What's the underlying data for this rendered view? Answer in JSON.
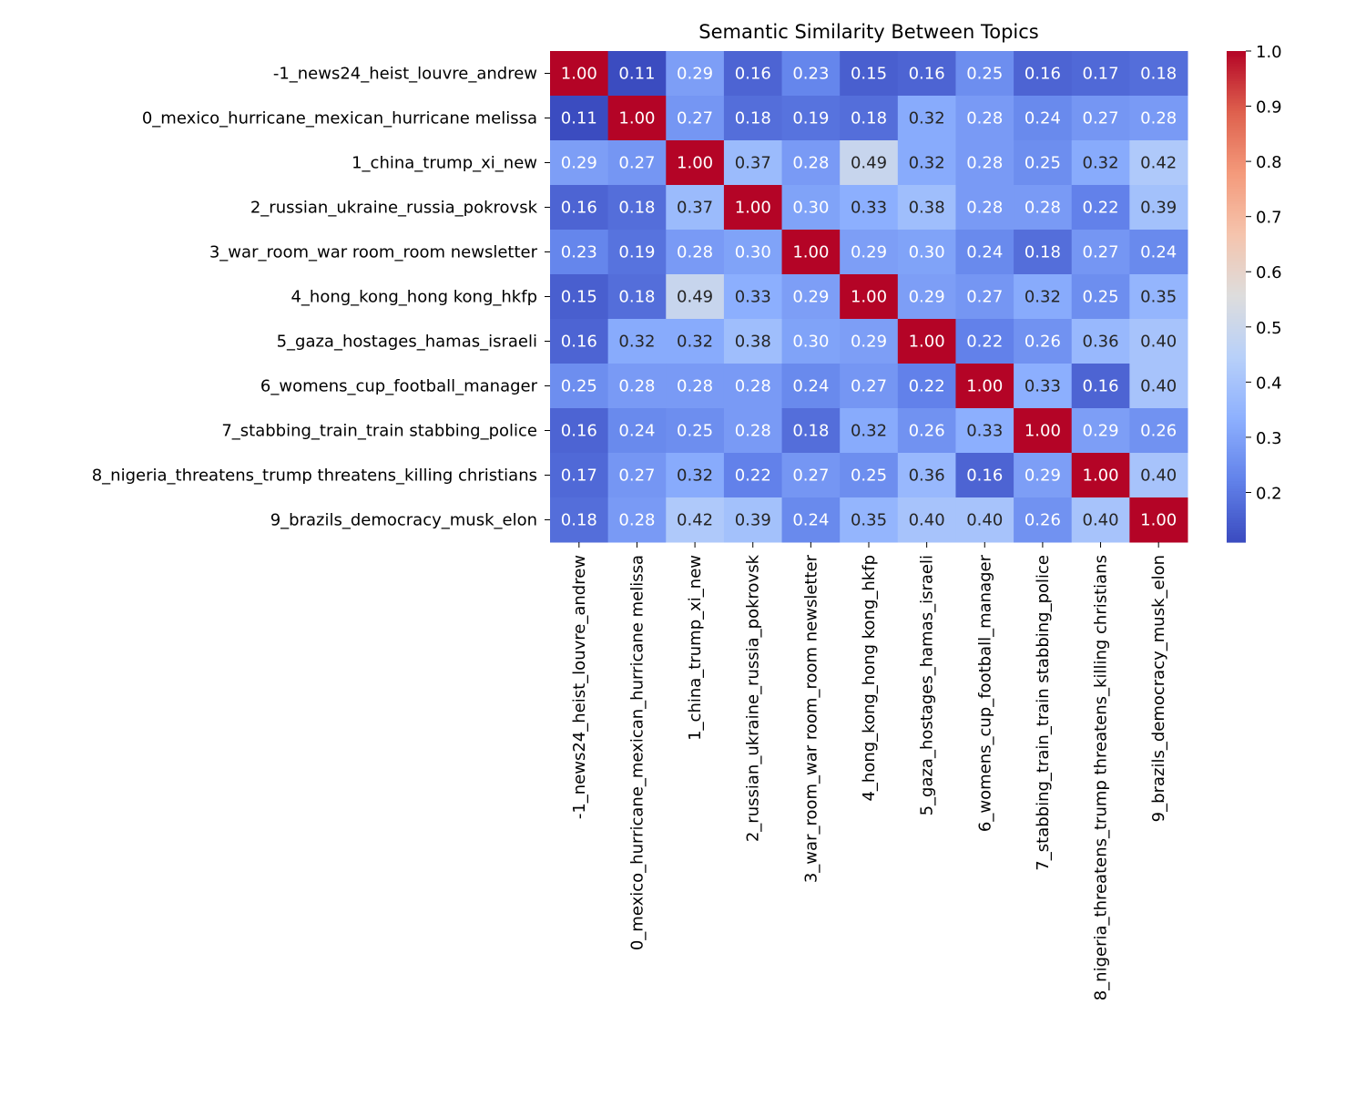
{
  "chart_data": {
    "type": "heatmap",
    "title": "Semantic Similarity Between Topics",
    "colormap": "coolwarm",
    "vmin": 0.11,
    "vmax": 1.0,
    "colorbar_ticks": [
      "0.2",
      "0.3",
      "0.4",
      "0.5",
      "0.6",
      "0.7",
      "0.8",
      "0.9",
      "1.0"
    ],
    "labels": [
      "-1_news24_heist_louvre_andrew",
      "0_mexico_hurricane_mexican_hurricane melissa",
      "1_china_trump_xi_new",
      "2_russian_ukraine_russia_pokrovsk",
      "3_war_room_war room_room newsletter",
      "4_hong_kong_hong kong_hkfp",
      "5_gaza_hostages_hamas_israeli",
      "6_womens_cup_football_manager",
      "7_stabbing_train_train stabbing_police",
      "8_nigeria_threatens_trump threatens_killing christians",
      "9_brazils_democracy_musk_elon"
    ],
    "values": [
      [
        1.0,
        0.11,
        0.29,
        0.16,
        0.23,
        0.15,
        0.16,
        0.25,
        0.16,
        0.17,
        0.18
      ],
      [
        0.11,
        1.0,
        0.27,
        0.18,
        0.19,
        0.18,
        0.32,
        0.28,
        0.24,
        0.27,
        0.28
      ],
      [
        0.29,
        0.27,
        1.0,
        0.37,
        0.28,
        0.49,
        0.32,
        0.28,
        0.25,
        0.32,
        0.42
      ],
      [
        0.16,
        0.18,
        0.37,
        1.0,
        0.3,
        0.33,
        0.38,
        0.28,
        0.28,
        0.22,
        0.39
      ],
      [
        0.23,
        0.19,
        0.28,
        0.3,
        1.0,
        0.29,
        0.3,
        0.24,
        0.18,
        0.27,
        0.24
      ],
      [
        0.15,
        0.18,
        0.49,
        0.33,
        0.29,
        1.0,
        0.29,
        0.27,
        0.32,
        0.25,
        0.35
      ],
      [
        0.16,
        0.32,
        0.32,
        0.38,
        0.3,
        0.29,
        1.0,
        0.22,
        0.26,
        0.36,
        0.4
      ],
      [
        0.25,
        0.28,
        0.28,
        0.28,
        0.24,
        0.27,
        0.22,
        1.0,
        0.33,
        0.16,
        0.4
      ],
      [
        0.16,
        0.24,
        0.25,
        0.28,
        0.18,
        0.32,
        0.26,
        0.33,
        1.0,
        0.29,
        0.26
      ],
      [
        0.17,
        0.27,
        0.32,
        0.22,
        0.27,
        0.25,
        0.36,
        0.16,
        0.29,
        1.0,
        0.4
      ],
      [
        0.18,
        0.28,
        0.42,
        0.39,
        0.24,
        0.35,
        0.4,
        0.4,
        0.26,
        0.4,
        1.0
      ]
    ]
  }
}
